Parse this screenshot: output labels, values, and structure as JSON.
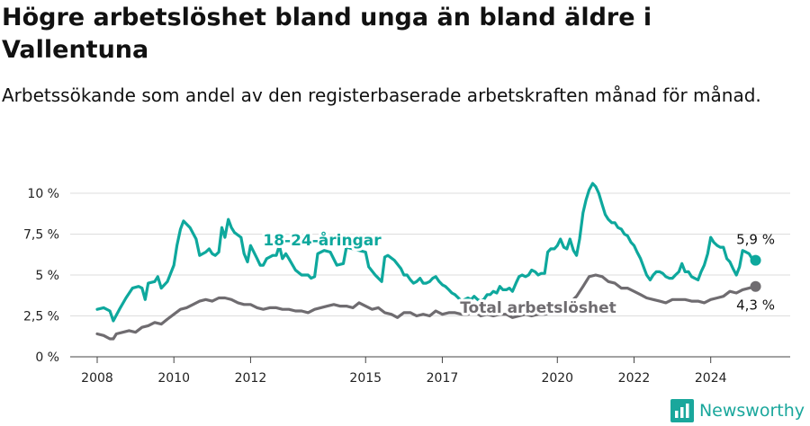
{
  "title": "Högre arbetslöshet bland unga än bland äldre i Vallentuna",
  "subtitle": "Arbetssökande som andel av den registerbaserade arbetskraften månad för månad.",
  "brand": {
    "name": "Newsworthy",
    "color": "#1aa79c"
  },
  "colors": {
    "young": "#0ea89d",
    "total": "#6f6c70",
    "grid": "#dddddd"
  },
  "chart_data": {
    "type": "line",
    "title": "Högre arbetslöshet bland unga än bland äldre i Vallentuna",
    "ylim": [
      0,
      10.5
    ],
    "yticks": [
      0,
      2.5,
      5,
      7.5,
      10
    ],
    "ytick_labels": [
      "0 %",
      "2,5 %",
      "5 %",
      "7,5 %",
      "10 %"
    ],
    "xlim": [
      2007.83,
      2025.5
    ],
    "xticks": [
      2008,
      2010,
      2012,
      2015,
      2017,
      2020,
      2022,
      2024
    ],
    "xtick_labels": [
      "2008",
      "2010",
      "2012",
      "2015",
      "2017",
      "2020",
      "2022",
      "2024"
    ],
    "grid": true,
    "series": [
      {
        "name": "18-24-åringar",
        "color": "#0ea89d",
        "end_label": "5,9 %",
        "points": [
          [
            2008.0,
            2.9
          ],
          [
            2008.17,
            3.0
          ],
          [
            2008.33,
            2.8
          ],
          [
            2008.42,
            2.2
          ],
          [
            2008.58,
            2.9
          ],
          [
            2008.75,
            3.6
          ],
          [
            2008.92,
            4.2
          ],
          [
            2009.08,
            4.3
          ],
          [
            2009.17,
            4.2
          ],
          [
            2009.25,
            3.5
          ],
          [
            2009.33,
            4.5
          ],
          [
            2009.5,
            4.6
          ],
          [
            2009.58,
            4.9
          ],
          [
            2009.67,
            4.2
          ],
          [
            2009.83,
            4.6
          ],
          [
            2010.0,
            5.6
          ],
          [
            2010.08,
            6.8
          ],
          [
            2010.17,
            7.8
          ],
          [
            2010.25,
            8.3
          ],
          [
            2010.42,
            7.9
          ],
          [
            2010.58,
            7.2
          ],
          [
            2010.67,
            6.2
          ],
          [
            2010.83,
            6.4
          ],
          [
            2010.92,
            6.6
          ],
          [
            2011.0,
            6.3
          ],
          [
            2011.08,
            6.2
          ],
          [
            2011.17,
            6.4
          ],
          [
            2011.25,
            7.9
          ],
          [
            2011.33,
            7.3
          ],
          [
            2011.42,
            8.4
          ],
          [
            2011.5,
            7.9
          ],
          [
            2011.58,
            7.6
          ],
          [
            2011.75,
            7.3
          ],
          [
            2011.83,
            6.3
          ],
          [
            2011.92,
            5.8
          ],
          [
            2012.0,
            6.8
          ],
          [
            2012.17,
            6.0
          ],
          [
            2012.25,
            5.6
          ],
          [
            2012.33,
            5.6
          ],
          [
            2012.42,
            6.0
          ],
          [
            2012.5,
            6.1
          ],
          [
            2012.58,
            6.2
          ],
          [
            2012.67,
            6.2
          ],
          [
            2012.75,
            6.8
          ],
          [
            2012.83,
            6.0
          ],
          [
            2012.92,
            6.3
          ],
          [
            2013.0,
            6.0
          ],
          [
            2013.17,
            5.3
          ],
          [
            2013.33,
            5.0
          ],
          [
            2013.5,
            5.0
          ],
          [
            2013.58,
            4.8
          ],
          [
            2013.67,
            4.9
          ],
          [
            2013.75,
            6.3
          ],
          [
            2013.92,
            6.5
          ],
          [
            2014.08,
            6.4
          ],
          [
            2014.25,
            5.6
          ],
          [
            2014.42,
            5.7
          ],
          [
            2014.5,
            6.7
          ],
          [
            2014.67,
            6.6
          ],
          [
            2014.83,
            6.5
          ],
          [
            2015.0,
            6.4
          ],
          [
            2015.08,
            5.5
          ],
          [
            2015.25,
            5.0
          ],
          [
            2015.42,
            4.6
          ],
          [
            2015.5,
            6.1
          ],
          [
            2015.58,
            6.2
          ],
          [
            2015.75,
            5.9
          ],
          [
            2015.92,
            5.4
          ],
          [
            2016.0,
            5.0
          ],
          [
            2016.08,
            5.0
          ],
          [
            2016.17,
            4.7
          ],
          [
            2016.25,
            4.5
          ],
          [
            2016.33,
            4.6
          ],
          [
            2016.42,
            4.8
          ],
          [
            2016.5,
            4.5
          ],
          [
            2016.58,
            4.5
          ],
          [
            2016.67,
            4.6
          ],
          [
            2016.75,
            4.8
          ],
          [
            2016.83,
            4.9
          ],
          [
            2016.92,
            4.6
          ],
          [
            2017.0,
            4.4
          ],
          [
            2017.08,
            4.3
          ],
          [
            2017.17,
            4.1
          ],
          [
            2017.25,
            3.9
          ],
          [
            2017.33,
            3.8
          ],
          [
            2017.42,
            3.6
          ],
          [
            2017.5,
            3.4
          ],
          [
            2017.58,
            3.5
          ],
          [
            2017.67,
            3.6
          ],
          [
            2017.75,
            3.5
          ],
          [
            2017.83,
            3.7
          ],
          [
            2017.92,
            3.5
          ],
          [
            2018.0,
            3.4
          ],
          [
            2018.08,
            3.5
          ],
          [
            2018.17,
            3.8
          ],
          [
            2018.25,
            3.8
          ],
          [
            2018.33,
            4.0
          ],
          [
            2018.42,
            3.9
          ],
          [
            2018.5,
            4.3
          ],
          [
            2018.58,
            4.1
          ],
          [
            2018.67,
            4.1
          ],
          [
            2018.75,
            4.2
          ],
          [
            2018.83,
            4.0
          ],
          [
            2018.92,
            4.5
          ],
          [
            2019.0,
            4.9
          ],
          [
            2019.08,
            5.0
          ],
          [
            2019.17,
            4.9
          ],
          [
            2019.25,
            5.0
          ],
          [
            2019.33,
            5.3
          ],
          [
            2019.42,
            5.2
          ],
          [
            2019.5,
            5.0
          ],
          [
            2019.58,
            5.1
          ],
          [
            2019.67,
            5.1
          ],
          [
            2019.75,
            6.4
          ],
          [
            2019.83,
            6.6
          ],
          [
            2019.92,
            6.6
          ],
          [
            2020.0,
            6.8
          ],
          [
            2020.08,
            7.2
          ],
          [
            2020.17,
            6.7
          ],
          [
            2020.25,
            6.6
          ],
          [
            2020.33,
            7.2
          ],
          [
            2020.42,
            6.5
          ],
          [
            2020.5,
            6.2
          ],
          [
            2020.58,
            7.2
          ],
          [
            2020.67,
            8.8
          ],
          [
            2020.75,
            9.6
          ],
          [
            2020.83,
            10.2
          ],
          [
            2020.92,
            10.6
          ],
          [
            2021.0,
            10.4
          ],
          [
            2021.08,
            10.0
          ],
          [
            2021.17,
            9.3
          ],
          [
            2021.25,
            8.7
          ],
          [
            2021.33,
            8.4
          ],
          [
            2021.42,
            8.2
          ],
          [
            2021.5,
            8.2
          ],
          [
            2021.58,
            7.9
          ],
          [
            2021.67,
            7.8
          ],
          [
            2021.75,
            7.5
          ],
          [
            2021.83,
            7.4
          ],
          [
            2021.92,
            7.0
          ],
          [
            2022.0,
            6.8
          ],
          [
            2022.08,
            6.4
          ],
          [
            2022.17,
            6.0
          ],
          [
            2022.25,
            5.5
          ],
          [
            2022.33,
            5.0
          ],
          [
            2022.42,
            4.7
          ],
          [
            2022.5,
            5.0
          ],
          [
            2022.58,
            5.2
          ],
          [
            2022.67,
            5.2
          ],
          [
            2022.75,
            5.1
          ],
          [
            2022.83,
            4.9
          ],
          [
            2022.92,
            4.8
          ],
          [
            2023.0,
            4.8
          ],
          [
            2023.08,
            5.0
          ],
          [
            2023.17,
            5.2
          ],
          [
            2023.25,
            5.7
          ],
          [
            2023.33,
            5.2
          ],
          [
            2023.42,
            5.2
          ],
          [
            2023.5,
            4.9
          ],
          [
            2023.58,
            4.8
          ],
          [
            2023.67,
            4.7
          ],
          [
            2023.75,
            5.2
          ],
          [
            2023.83,
            5.6
          ],
          [
            2023.92,
            6.3
          ],
          [
            2024.0,
            7.3
          ],
          [
            2024.08,
            7.0
          ],
          [
            2024.17,
            6.8
          ],
          [
            2024.25,
            6.7
          ],
          [
            2024.33,
            6.7
          ],
          [
            2024.42,
            6.0
          ],
          [
            2024.5,
            5.8
          ],
          [
            2024.58,
            5.4
          ],
          [
            2024.67,
            5.0
          ],
          [
            2024.75,
            5.5
          ],
          [
            2024.83,
            6.5
          ],
          [
            2024.92,
            6.4
          ],
          [
            2025.0,
            6.3
          ],
          [
            2025.08,
            6.0
          ],
          [
            2025.17,
            5.9
          ]
        ]
      },
      {
        "name": "Total arbetslöshet",
        "color": "#6f6c70",
        "end_label": "4,3 %",
        "points": [
          [
            2008.0,
            1.4
          ],
          [
            2008.17,
            1.3
          ],
          [
            2008.33,
            1.1
          ],
          [
            2008.42,
            1.1
          ],
          [
            2008.5,
            1.4
          ],
          [
            2008.67,
            1.5
          ],
          [
            2008.83,
            1.6
          ],
          [
            2009.0,
            1.5
          ],
          [
            2009.17,
            1.8
          ],
          [
            2009.33,
            1.9
          ],
          [
            2009.5,
            2.1
          ],
          [
            2009.67,
            2.0
          ],
          [
            2009.83,
            2.3
          ],
          [
            2010.0,
            2.6
          ],
          [
            2010.17,
            2.9
          ],
          [
            2010.33,
            3.0
          ],
          [
            2010.5,
            3.2
          ],
          [
            2010.67,
            3.4
          ],
          [
            2010.83,
            3.5
          ],
          [
            2011.0,
            3.4
          ],
          [
            2011.17,
            3.6
          ],
          [
            2011.33,
            3.6
          ],
          [
            2011.5,
            3.5
          ],
          [
            2011.67,
            3.3
          ],
          [
            2011.83,
            3.2
          ],
          [
            2012.0,
            3.2
          ],
          [
            2012.17,
            3.0
          ],
          [
            2012.33,
            2.9
          ],
          [
            2012.5,
            3.0
          ],
          [
            2012.67,
            3.0
          ],
          [
            2012.83,
            2.9
          ],
          [
            2013.0,
            2.9
          ],
          [
            2013.17,
            2.8
          ],
          [
            2013.33,
            2.8
          ],
          [
            2013.5,
            2.7
          ],
          [
            2013.67,
            2.9
          ],
          [
            2013.83,
            3.0
          ],
          [
            2014.0,
            3.1
          ],
          [
            2014.17,
            3.2
          ],
          [
            2014.33,
            3.1
          ],
          [
            2014.5,
            3.1
          ],
          [
            2014.67,
            3.0
          ],
          [
            2014.83,
            3.3
          ],
          [
            2015.0,
            3.1
          ],
          [
            2015.17,
            2.9
          ],
          [
            2015.33,
            3.0
          ],
          [
            2015.5,
            2.7
          ],
          [
            2015.67,
            2.6
          ],
          [
            2015.83,
            2.4
          ],
          [
            2016.0,
            2.7
          ],
          [
            2016.17,
            2.7
          ],
          [
            2016.33,
            2.5
          ],
          [
            2016.5,
            2.6
          ],
          [
            2016.67,
            2.5
          ],
          [
            2016.83,
            2.8
          ],
          [
            2017.0,
            2.6
          ],
          [
            2017.17,
            2.7
          ],
          [
            2017.33,
            2.7
          ],
          [
            2017.5,
            2.6
          ],
          [
            2017.67,
            2.6
          ],
          [
            2017.83,
            2.8
          ],
          [
            2018.0,
            2.5
          ],
          [
            2018.17,
            2.6
          ],
          [
            2018.33,
            2.5
          ],
          [
            2018.5,
            2.6
          ],
          [
            2018.67,
            2.6
          ],
          [
            2018.83,
            2.4
          ],
          [
            2019.0,
            2.5
          ],
          [
            2019.17,
            2.6
          ],
          [
            2019.33,
            2.5
          ],
          [
            2019.5,
            2.6
          ],
          [
            2019.67,
            2.6
          ],
          [
            2019.83,
            2.7
          ],
          [
            2020.0,
            2.8
          ],
          [
            2020.17,
            3.0
          ],
          [
            2020.33,
            3.3
          ],
          [
            2020.5,
            3.7
          ],
          [
            2020.67,
            4.3
          ],
          [
            2020.83,
            4.9
          ],
          [
            2021.0,
            5.0
          ],
          [
            2021.17,
            4.9
          ],
          [
            2021.33,
            4.6
          ],
          [
            2021.5,
            4.5
          ],
          [
            2021.67,
            4.2
          ],
          [
            2021.83,
            4.2
          ],
          [
            2022.0,
            4.0
          ],
          [
            2022.17,
            3.8
          ],
          [
            2022.33,
            3.6
          ],
          [
            2022.5,
            3.5
          ],
          [
            2022.67,
            3.4
          ],
          [
            2022.83,
            3.3
          ],
          [
            2023.0,
            3.5
          ],
          [
            2023.17,
            3.5
          ],
          [
            2023.33,
            3.5
          ],
          [
            2023.5,
            3.4
          ],
          [
            2023.67,
            3.4
          ],
          [
            2023.83,
            3.3
          ],
          [
            2024.0,
            3.5
          ],
          [
            2024.17,
            3.6
          ],
          [
            2024.33,
            3.7
          ],
          [
            2024.5,
            4.0
          ],
          [
            2024.67,
            3.9
          ],
          [
            2024.83,
            4.1
          ],
          [
            2025.0,
            4.2
          ],
          [
            2025.17,
            4.3
          ]
        ]
      }
    ],
    "annotations": [
      {
        "text": "18-24-åringar",
        "series": "18-24-åringar"
      },
      {
        "text": "Total arbetslöshet",
        "series": "Total arbetslöshet"
      }
    ]
  }
}
